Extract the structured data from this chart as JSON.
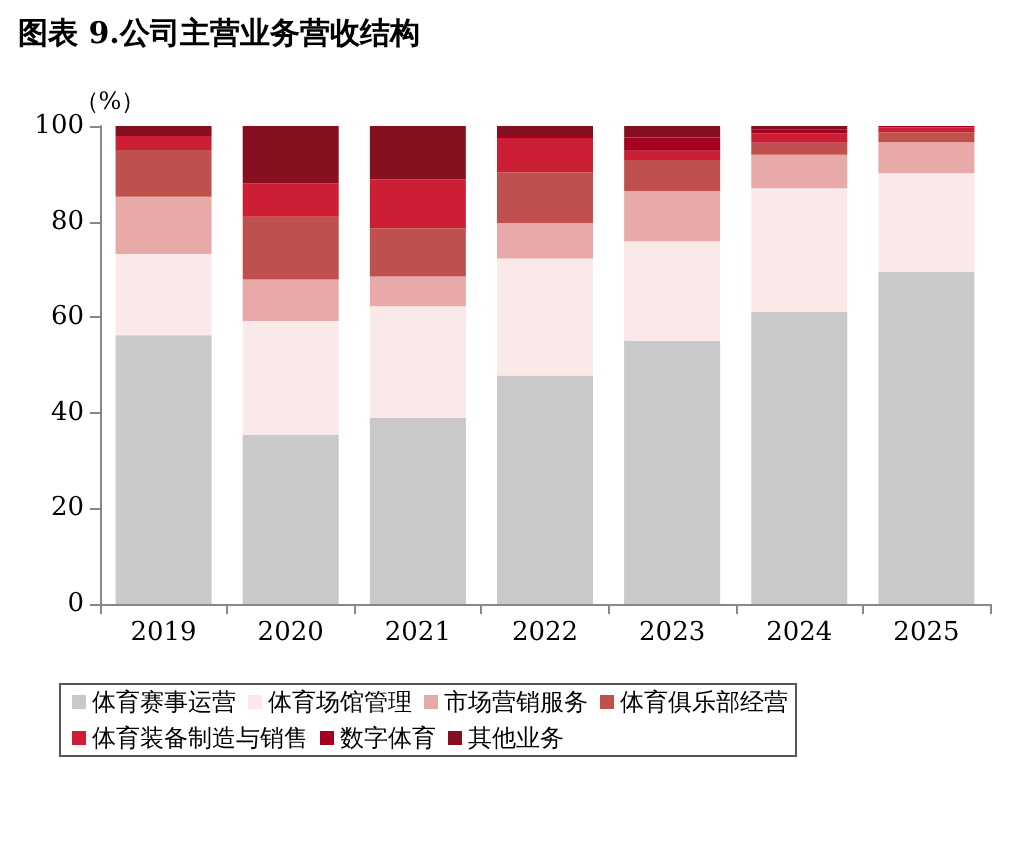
{
  "chart_data": {
    "type": "bar",
    "stacked": true,
    "title": "图表 9.公司主营业务营收结构",
    "ylabel": "（%）",
    "categories": [
      "2019",
      "2020",
      "2021",
      "2022",
      "2023",
      "2024",
      "2025"
    ],
    "series": [
      {
        "name": "体育赛事运营",
        "color": "#c9c9c9",
        "values": [
          56.2,
          35.4,
          38.9,
          47.8,
          55.0,
          61.1,
          69.5
        ]
      },
      {
        "name": "体育场馆管理",
        "color": "#f9e9e8",
        "values": [
          17.0,
          23.8,
          23.4,
          24.5,
          20.9,
          25.9,
          20.6
        ]
      },
      {
        "name": "市场营销服务",
        "color": "#e8aaa8",
        "values": [
          12.0,
          8.7,
          6.2,
          7.4,
          10.5,
          7.0,
          6.5
        ]
      },
      {
        "name": "体育俱乐部经营",
        "color": "#c0504d",
        "values": [
          9.8,
          13.1,
          10.1,
          10.6,
          6.5,
          2.5,
          2.1
        ]
      },
      {
        "name": "体育装备制造与销售",
        "color": "#cc1f36",
        "values": [
          2.9,
          7.0,
          10.2,
          7.2,
          1.9,
          2.0,
          1.0
        ]
      },
      {
        "name": "数字体育",
        "color": "#a50021",
        "values": [
          0,
          0,
          0,
          0.4,
          2.8,
          0.7,
          0.3
        ]
      },
      {
        "name": "其他业务",
        "color": "#861020",
        "values": [
          2.1,
          12.0,
          11.2,
          2.1,
          2.4,
          0.8,
          0
        ]
      }
    ],
    "ylim": [
      0,
      100
    ],
    "yticks": [
      0,
      20,
      40,
      60,
      80,
      100
    ],
    "grid": false,
    "legend": "bottom"
  }
}
